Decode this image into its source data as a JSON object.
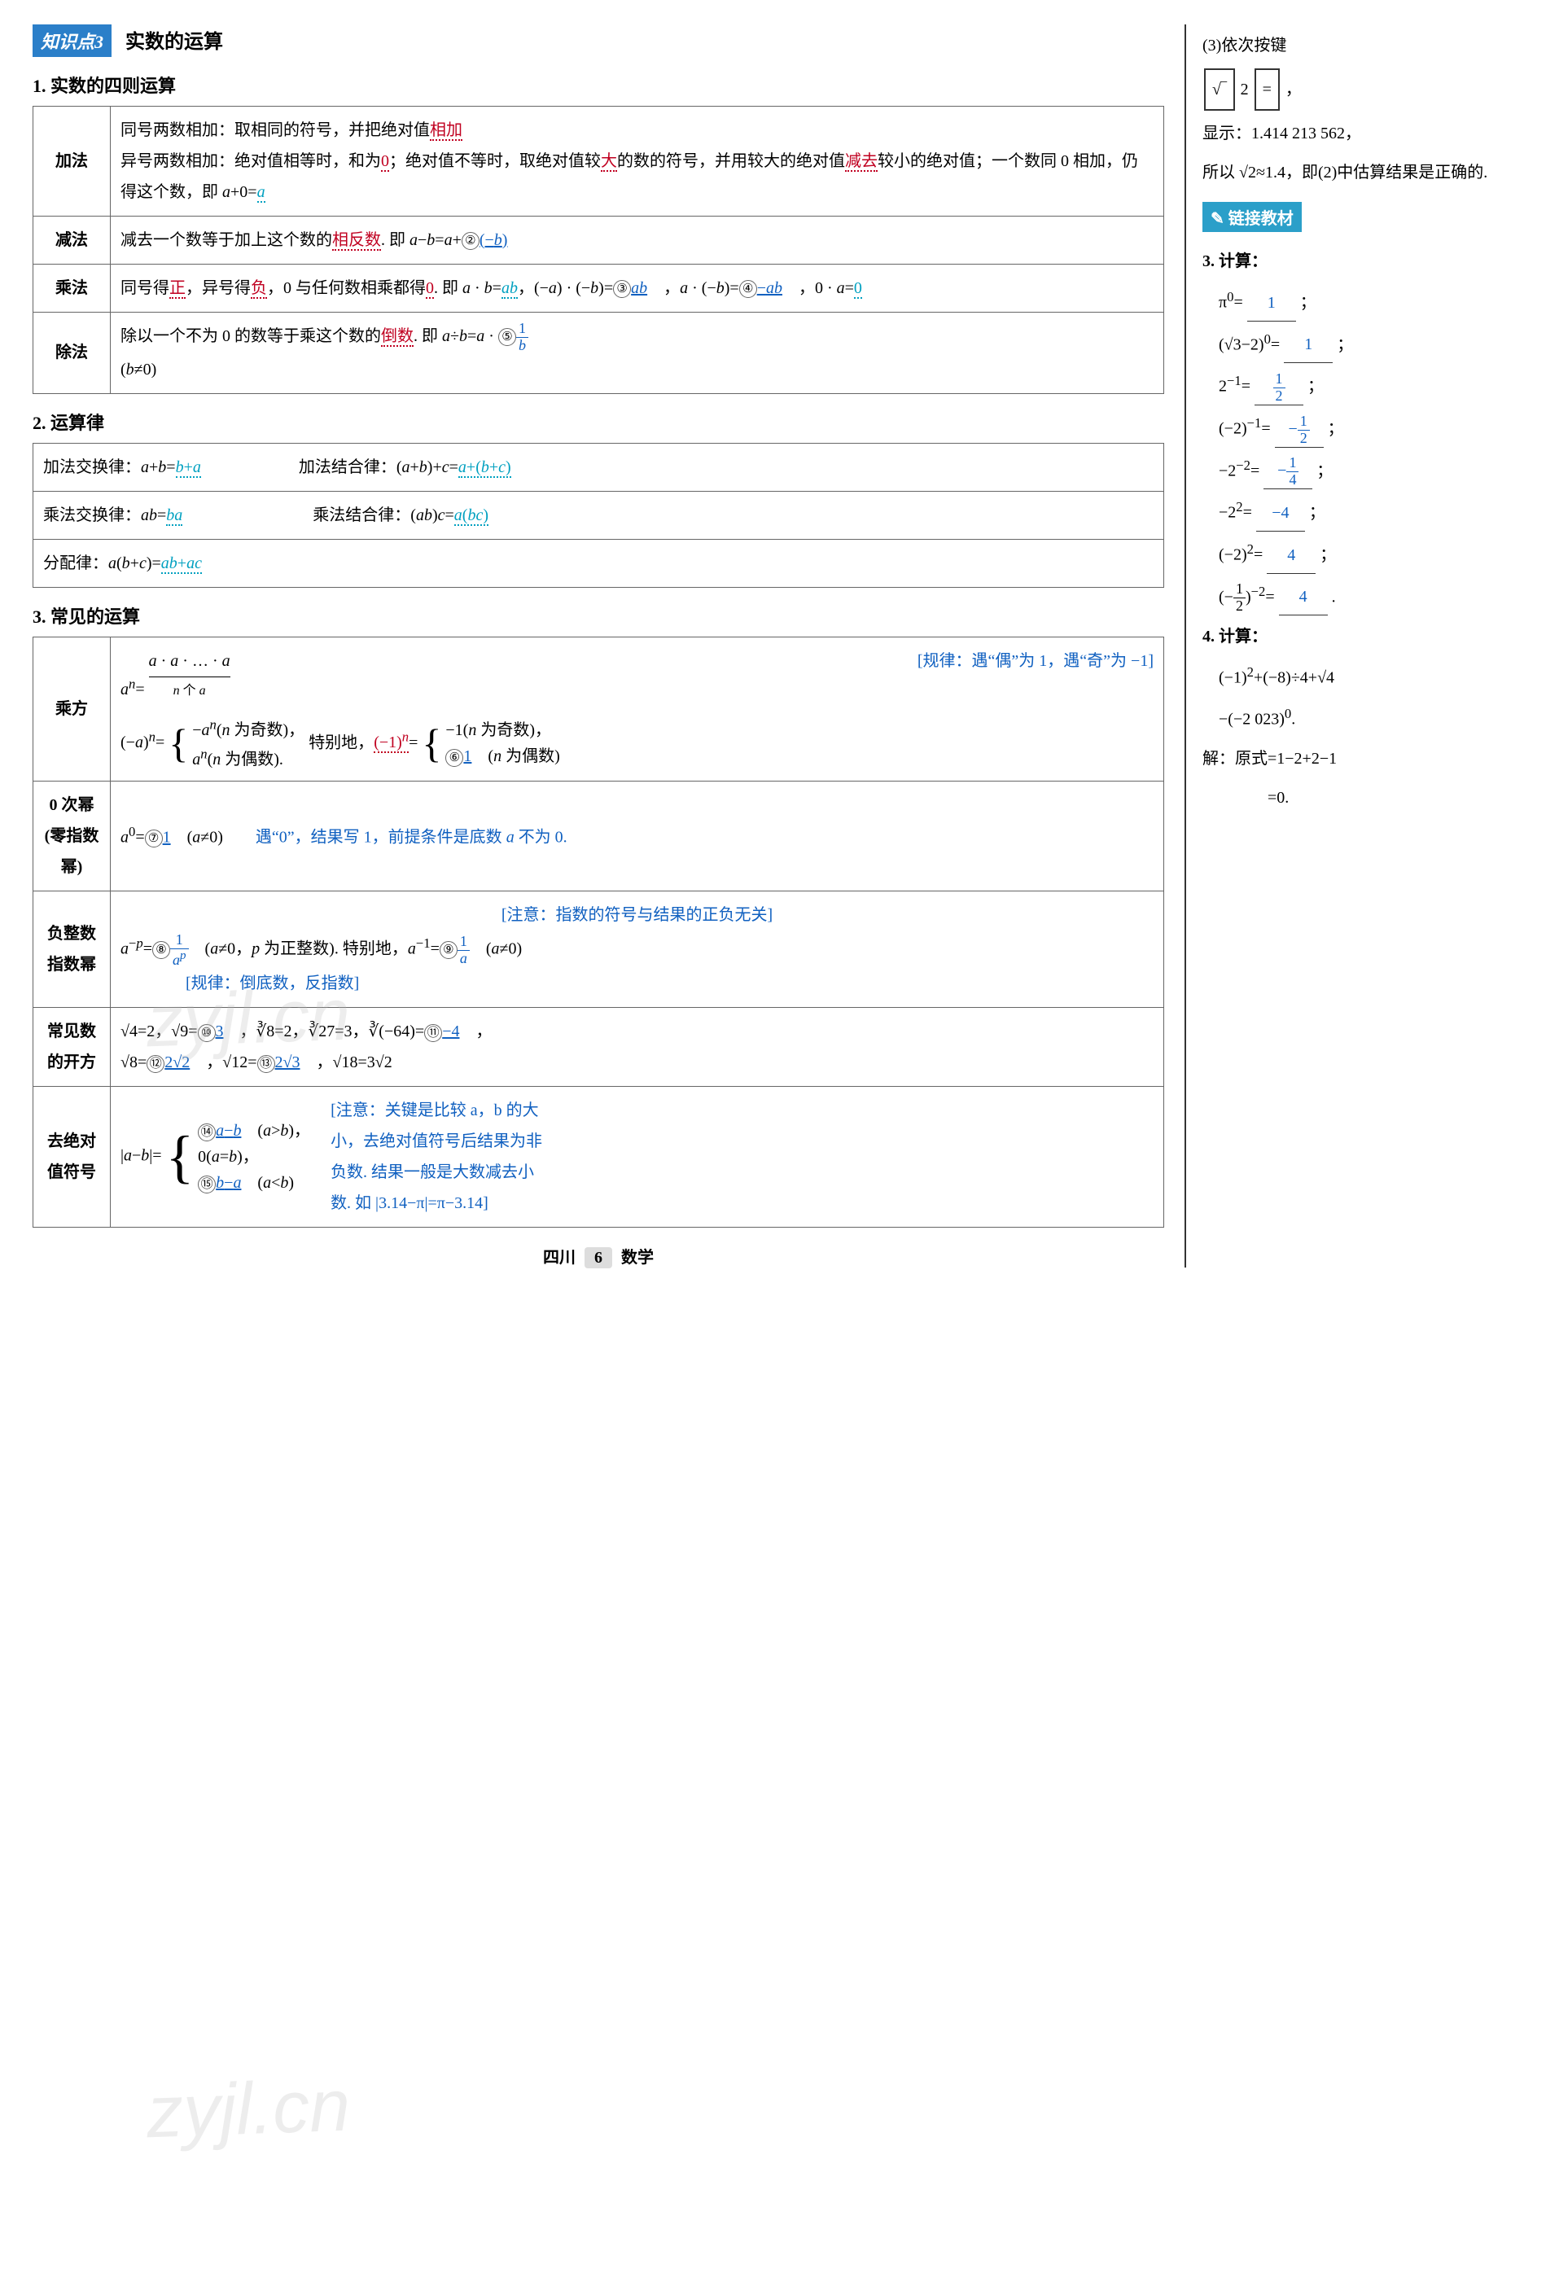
{
  "kp": {
    "badge": "知识点3",
    "title": "实数的运算"
  },
  "sec1": {
    "title": "1. 实数的四则运算",
    "rows": [
      {
        "label": "加法",
        "body": "同号两数相加：取相同的符号，并把绝对值<span class='u-red'>相加</span><br>异号两数相加：绝对值相等时，和为<span class='u-red'>0</span>；绝对值不等时，取绝对值较<span class='u-red'>大</span>的数的符号，并用较大的绝对值<span class='u-red'>减去</span>较小的绝对值；一个数同 0 相加，仍得这个数，即 <i>a</i>+0=<span class='u-cyan'><i>a</i></span>"
      },
      {
        "label": "减法",
        "body": "减去一个数等于加上这个数的<span class='u-red'>相反数</span>. 即 <i>a</i>−<i>b</i>=<i>a</i>+<span class='circ'>②</span><span class='blue-fill'>(−<i>b</i>)</span>"
      },
      {
        "label": "乘法",
        "body": "同号得<span class='u-red'>正</span>，异号得<span class='u-red'>负</span>，0 与任何数相乘都得<span class='u-red'>0</span>. 即 <i>a</i> · <i>b</i>=<span class='u-cyan'><i>ab</i></span>，(−<i>a</i>) · (−<i>b</i>)=<span class='circ'>③</span><span class='blue-fill'><i>ab</i></span>　，<i>a</i> · (−<i>b</i>)=<span class='circ'>④</span><span class='blue-fill'>−<i>ab</i></span>　，0 · <i>a</i>=<span class='u-cyan'>0</span>"
      },
      {
        "label": "除法",
        "body": "除以一个不为 0 的数等于乘这个数的<span class='u-red'>倒数</span>. 即 <i>a</i>÷<i>b</i>=<i>a</i> · <span class='circ'>⑤</span><span class='blue-fill'><span class='frac'><span class='num'>1</span><span class='den'><i>b</i></span></span></span><br>(<i>b</i>≠0)"
      }
    ]
  },
  "sec2": {
    "title": "2. 运算律",
    "rows": [
      "加法交换律：<i>a</i>+<i>b</i>=<span class='u-cyan'><i>b</i>+<i>a</i></span>　　　　　　加法结合律：(<i>a</i>+<i>b</i>)+<i>c</i>=<span class='u-cyan'><i>a</i>+(<i>b</i>+<i>c</i>)</span>",
      "乘法交换律：<i>ab</i>=<span class='u-cyan'><i>ba</i></span>　　　　　　　　乘法结合律：(<i>ab</i>)<i>c</i>=<span class='u-cyan'><i>a</i>(<i>bc</i>)</span>",
      "分配律：<i>a</i>(<i>b</i>+<i>c</i>)=<span class='u-cyan'><i>ab</i>+<i>ac</i></span>"
    ]
  },
  "sec3": {
    "title": "3. 常见的运算",
    "r1label": "乘方",
    "r1": {
      "line1_note": "[规律：遇“偶”为 1，遇“奇”为 −1]",
      "formula_head": "<i>a</i><sup><i>n</i></sup>=",
      "underbrace_top": "<i>a</i> · <i>a</i> · … · <i>a</i>",
      "underbrace_bot": "<i>n</i> 个 <i>a</i>",
      "brace1_pre": "(−<i>a</i>)<sup><i>n</i></sup>=",
      "brace1_a": "−<i>a</i><sup><i>n</i></sup>(<i>n</i> 为奇数)，",
      "brace1_b": "<i>a</i><sup><i>n</i></sup>(<i>n</i> 为偶数).",
      "mid": "特别地，<span class='u-red'>(−1)<sup><i>n</i></sup></span>=",
      "brace2_a": "−1(<i>n</i> 为奇数)，",
      "brace2_b": "<span class='circ'>⑥</span><span class='blue-fill'>1</span>　(<i>n</i> 为偶数)"
    },
    "r2label": "0 次幂(零指数幂)",
    "r2": "<i>a</i><sup>0</sup>=<span class='circ'>⑦</span><span class='blue-fill'>1</span>　(<i>a</i>≠0)　　<span class='blue-note'>遇“0”，结果写 1，前提条件是底数 <i>a</i> 不为 0.</span>",
    "r3label": "负整数指数幂",
    "r3_note_top": "[注意：指数的符号与结果的正负无关]",
    "r3": "<i>a</i><sup>−<i>p</i></sup>=<span class='circ'>⑧</span><span class='blue-fill'><span class='frac'><span class='num'>1</span><span class='den'><i>a</i><sup><i>p</i></sup></span></span></span>　(<i>a</i>≠0，<i>p</i> 为正整数). 特别地，<i>a</i><sup>−1</sup>=<span class='circ'>⑨</span><span class='blue-fill'><span class='frac'><span class='num'>1</span><span class='den'><i>a</i></span></span></span>　(<i>a</i>≠0)",
    "r3_note_bot": "[规律：倒底数，反指数]",
    "r4label": "常见数的开方",
    "r4": "√4=2，√9=<span class='circ'>⑩</span><span class='blue-fill'>3</span>　，∛8=2，∛27=3，∛(−64)=<span class='circ'>⑪</span><span class='blue-fill'>−4</span>　，<br>√8=<span class='circ'>⑫</span><span class='blue-fill'>2√2</span>　，√12=<span class='circ'>⑬</span><span class='blue-fill'>2√3</span>　，√18=3√2",
    "r5label": "去绝对值符号",
    "r5_pre": "|<i>a</i>−<i>b</i>|=",
    "r5_a": "<span class='circ'>⑭</span><span class='blue-fill'><i>a</i>−<i>b</i></span>　(<i>a</i>><i>b</i>)，",
    "r5_b": "0(<i>a</i>=<i>b</i>)，",
    "r5_c": "<span class='circ'>⑮</span><span class='blue-fill'><i>b</i>−<i>a</i></span>　(<i>a</i><<i>b</i>)",
    "r5_note": "[注意：关键是比较 a，b 的大小，去绝对值符号后结果为非负数. 结果一般是大数减去小数. 如 |3.14−π|=π−3.14]"
  },
  "side": {
    "p1": "(3)依次按键",
    "key1": "√‾",
    "key2": "2",
    "key3": "=",
    "comma": "，",
    "p2": "显示：1.414 213 562，",
    "p3": "所以 √2≈1.4，即(2)中估算结果是正确的.",
    "link": "链接教材",
    "calc3": "3. 计算：",
    "lines": [
      "π<sup>0</sup>= <span class='ublank'>1</span> ；",
      "(√3−2)<sup>0</sup>= <span class='ublank'>1</span> ；",
      "2<sup>−1</sup>= <span class='ublank'><span class='frac'><span class='num'>1</span><span class='den'>2</span></span></span> ；",
      "(−2)<sup>−1</sup>= <span class='ublank'>−<span class='frac'><span class='num'>1</span><span class='den'>2</span></span></span> ；",
      "−2<sup>−2</sup>= <span class='ublank'>−<span class='frac'><span class='num'>1</span><span class='den'>4</span></span></span> ；",
      "−2<sup>2</sup>= <span class='ublank'>−4</span> ；",
      "(−2)<sup>2</sup>= <span class='ublank'>4</span> ；",
      "(−<span class='frac'><span class='num'>1</span><span class='den'>2</span></span>)<sup>−2</sup>= <span class='ublank'>4</span> ."
    ],
    "calc4": "4. 计算：",
    "calc4a": "(−1)<sup>2</sup>+(−8)÷4+√4",
    "calc4b": "−(−2 023)<sup>0</sup>.",
    "sol1": "解：原式=1−2+2−1",
    "sol2": "　　　　=0."
  },
  "footer": {
    "left": "四川",
    "num": "6",
    "right": "数学"
  },
  "watermark": "zyjl.cn"
}
